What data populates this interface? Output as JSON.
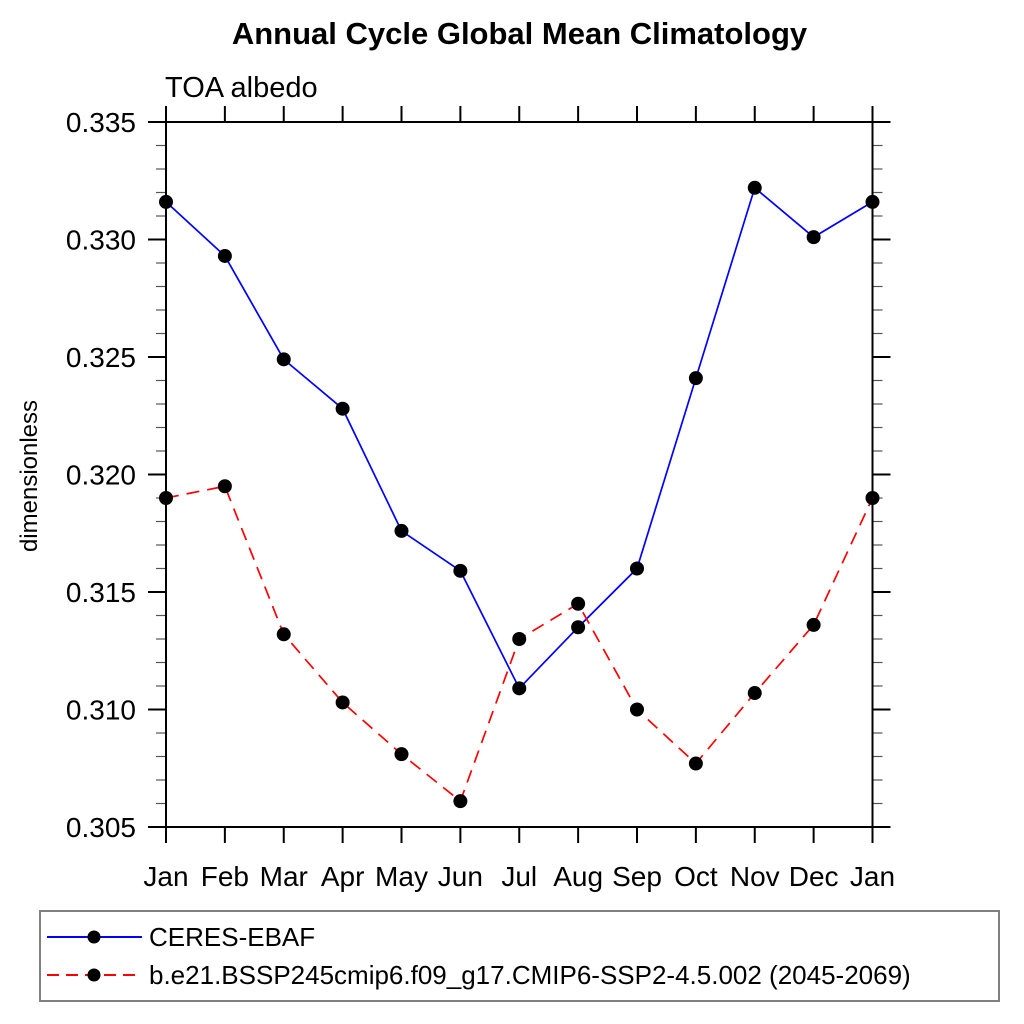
{
  "page": {
    "background": "#ffffff"
  },
  "chart_data": {
    "type": "line",
    "title": "Annual Cycle Global Mean Climatology",
    "subtitle": "TOA albedo",
    "ylabel": "dimensionless",
    "xlabel": "",
    "categories": [
      "Jan",
      "Feb",
      "Mar",
      "Apr",
      "May",
      "Jun",
      "Jul",
      "Aug",
      "Sep",
      "Oct",
      "Nov",
      "Dec",
      "Jan"
    ],
    "ylim": [
      0.305,
      0.335
    ],
    "ytick_major_step": 0.005,
    "ytick_minor_step": 0.001,
    "ytick_labels": [
      "0.305",
      "0.310",
      "0.315",
      "0.320",
      "0.325",
      "0.330",
      "0.335"
    ],
    "grid": false,
    "legend_position": "bottom-left-box",
    "marker": {
      "shape": "circle",
      "color": "#000000",
      "radius": 7
    },
    "axis_color": "#000000",
    "minor_tick_color": "#555555",
    "legend_border_color": "#808080",
    "series": [
      {
        "name": "CERES-EBAF",
        "color": "#0000ff",
        "line_style": "solid",
        "values": [
          0.3316,
          0.3293,
          0.3249,
          0.3228,
          0.3176,
          0.3159,
          0.3109,
          0.3135,
          0.316,
          0.3241,
          0.3322,
          0.3301,
          0.3316
        ]
      },
      {
        "name": "b.e21.BSSP245cmip6.f09_g17.CMIP6-SSP2-4.5.002 (2045-2069)",
        "color": "#ff0000",
        "line_style": "dashed",
        "values": [
          0.319,
          0.3195,
          0.3132,
          0.3103,
          0.3081,
          0.3061,
          0.313,
          0.3145,
          0.31,
          0.3077,
          0.3107,
          0.3136,
          0.319
        ]
      }
    ]
  }
}
